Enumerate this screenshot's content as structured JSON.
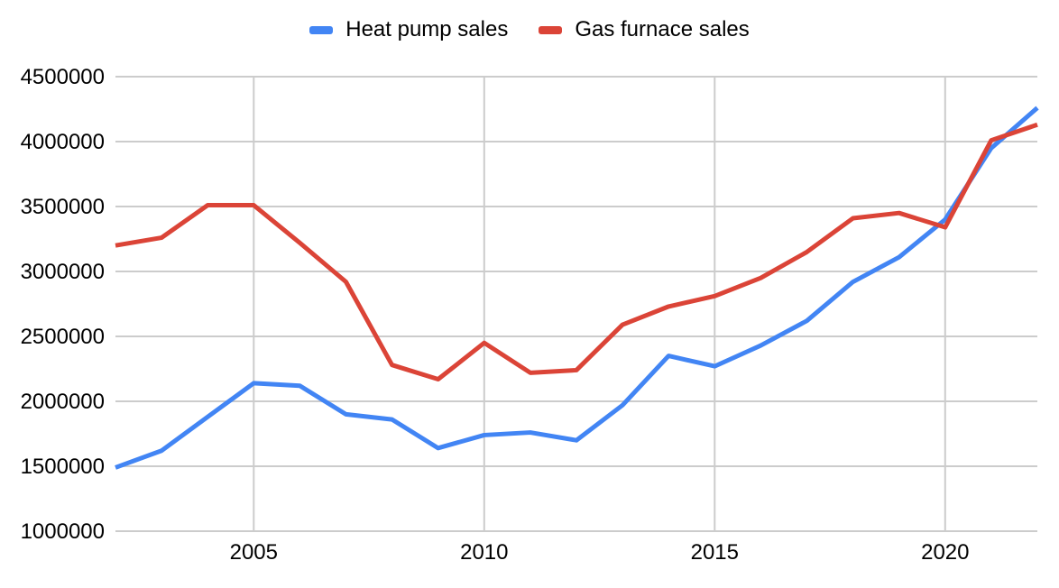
{
  "legend": {
    "items": [
      {
        "label": "Heat pump sales"
      },
      {
        "label": "Gas furnace sales"
      }
    ]
  },
  "chart_data": {
    "type": "line",
    "title": "",
    "xlabel": "",
    "ylabel": "",
    "x": [
      2002,
      2003,
      2004,
      2005,
      2006,
      2007,
      2008,
      2009,
      2010,
      2011,
      2012,
      2013,
      2014,
      2015,
      2016,
      2017,
      2018,
      2019,
      2020,
      2021,
      2022
    ],
    "x_label_ticks": [
      2005,
      2010,
      2015,
      2020
    ],
    "y_ticks": [
      1000000,
      1500000,
      2000000,
      2500000,
      3000000,
      3500000,
      4000000,
      4500000
    ],
    "ylim": [
      1000000,
      4500000
    ],
    "xlim": [
      2002,
      2022
    ],
    "grid": true,
    "legend_position": "top",
    "series": [
      {
        "name": "Heat pump sales",
        "id": "heat-pump-sales",
        "color": "#4285F4",
        "values": [
          1490000,
          1620000,
          1880000,
          2140000,
          2120000,
          1900000,
          1860000,
          1640000,
          1740000,
          1760000,
          1700000,
          1970000,
          2350000,
          2270000,
          2430000,
          2620000,
          2920000,
          3110000,
          3400000,
          3950000,
          4260000
        ]
      },
      {
        "name": "Gas furnace sales",
        "id": "gas-furnace-sales",
        "color": "#DB4437",
        "values": [
          3200000,
          3260000,
          3510000,
          3510000,
          3220000,
          2920000,
          2280000,
          2170000,
          2450000,
          2220000,
          2240000,
          2590000,
          2730000,
          2810000,
          2950000,
          3150000,
          3410000,
          3450000,
          3340000,
          4010000,
          4130000
        ]
      }
    ],
    "colors": {
      "gridline": "#cccccc",
      "axis_text": "#000000",
      "background": "#ffffff"
    }
  }
}
